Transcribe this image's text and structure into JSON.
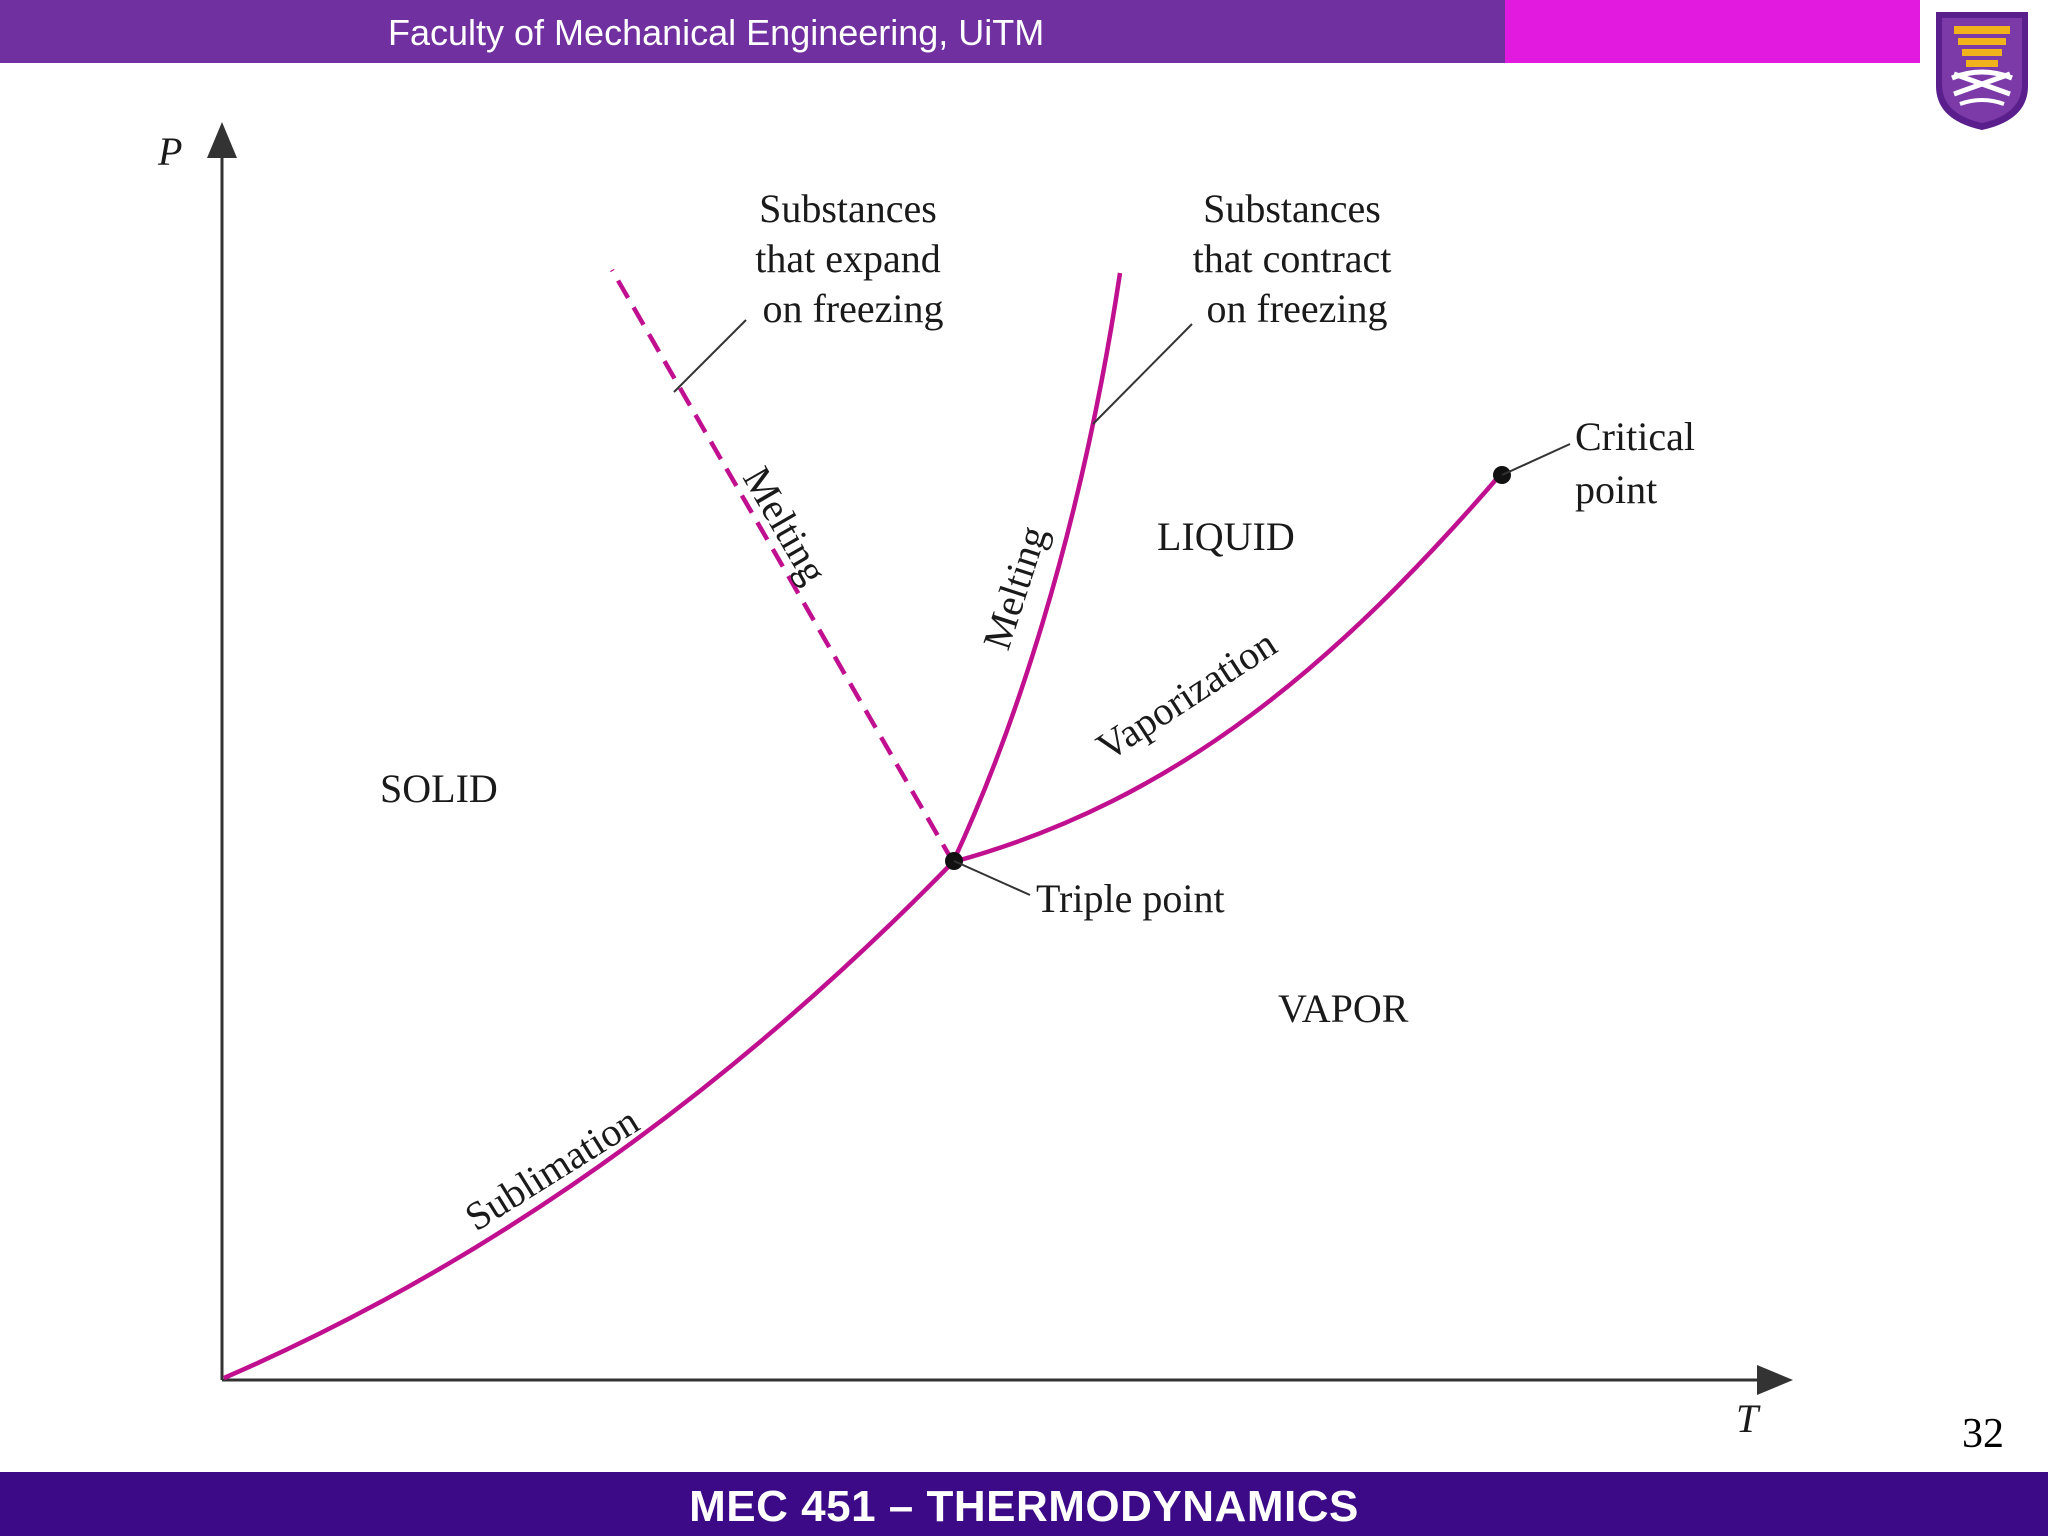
{
  "header": {
    "title": "Faculty of Mechanical Engineering, UiTM",
    "bar_color": "#7030a0",
    "accent_color": "#e21ae0",
    "logo_icon": "uitm-crest-icon"
  },
  "footer": {
    "title": "MEC 451 – THERMODYNAMICS",
    "bar_color": "#3c0a87"
  },
  "page_number": "32",
  "diagram": {
    "axis_y": "P",
    "axis_x": "T",
    "curve_color": "#c0108f",
    "regions": {
      "solid": "SOLID",
      "liquid": "LIQUID",
      "vapor": "VAPOR"
    },
    "curve_labels": {
      "sublimation": "Sublimation",
      "vaporization": "Vaporization",
      "melting_dashed": "Melting",
      "melting_solid": "Melting"
    },
    "annotations": {
      "expand": [
        "Substances",
        "that expand",
        "on freezing"
      ],
      "contract": [
        "Substances",
        "that contract",
        "on freezing"
      ],
      "critical": [
        "Critical",
        "point"
      ],
      "triple": "Triple point"
    }
  }
}
